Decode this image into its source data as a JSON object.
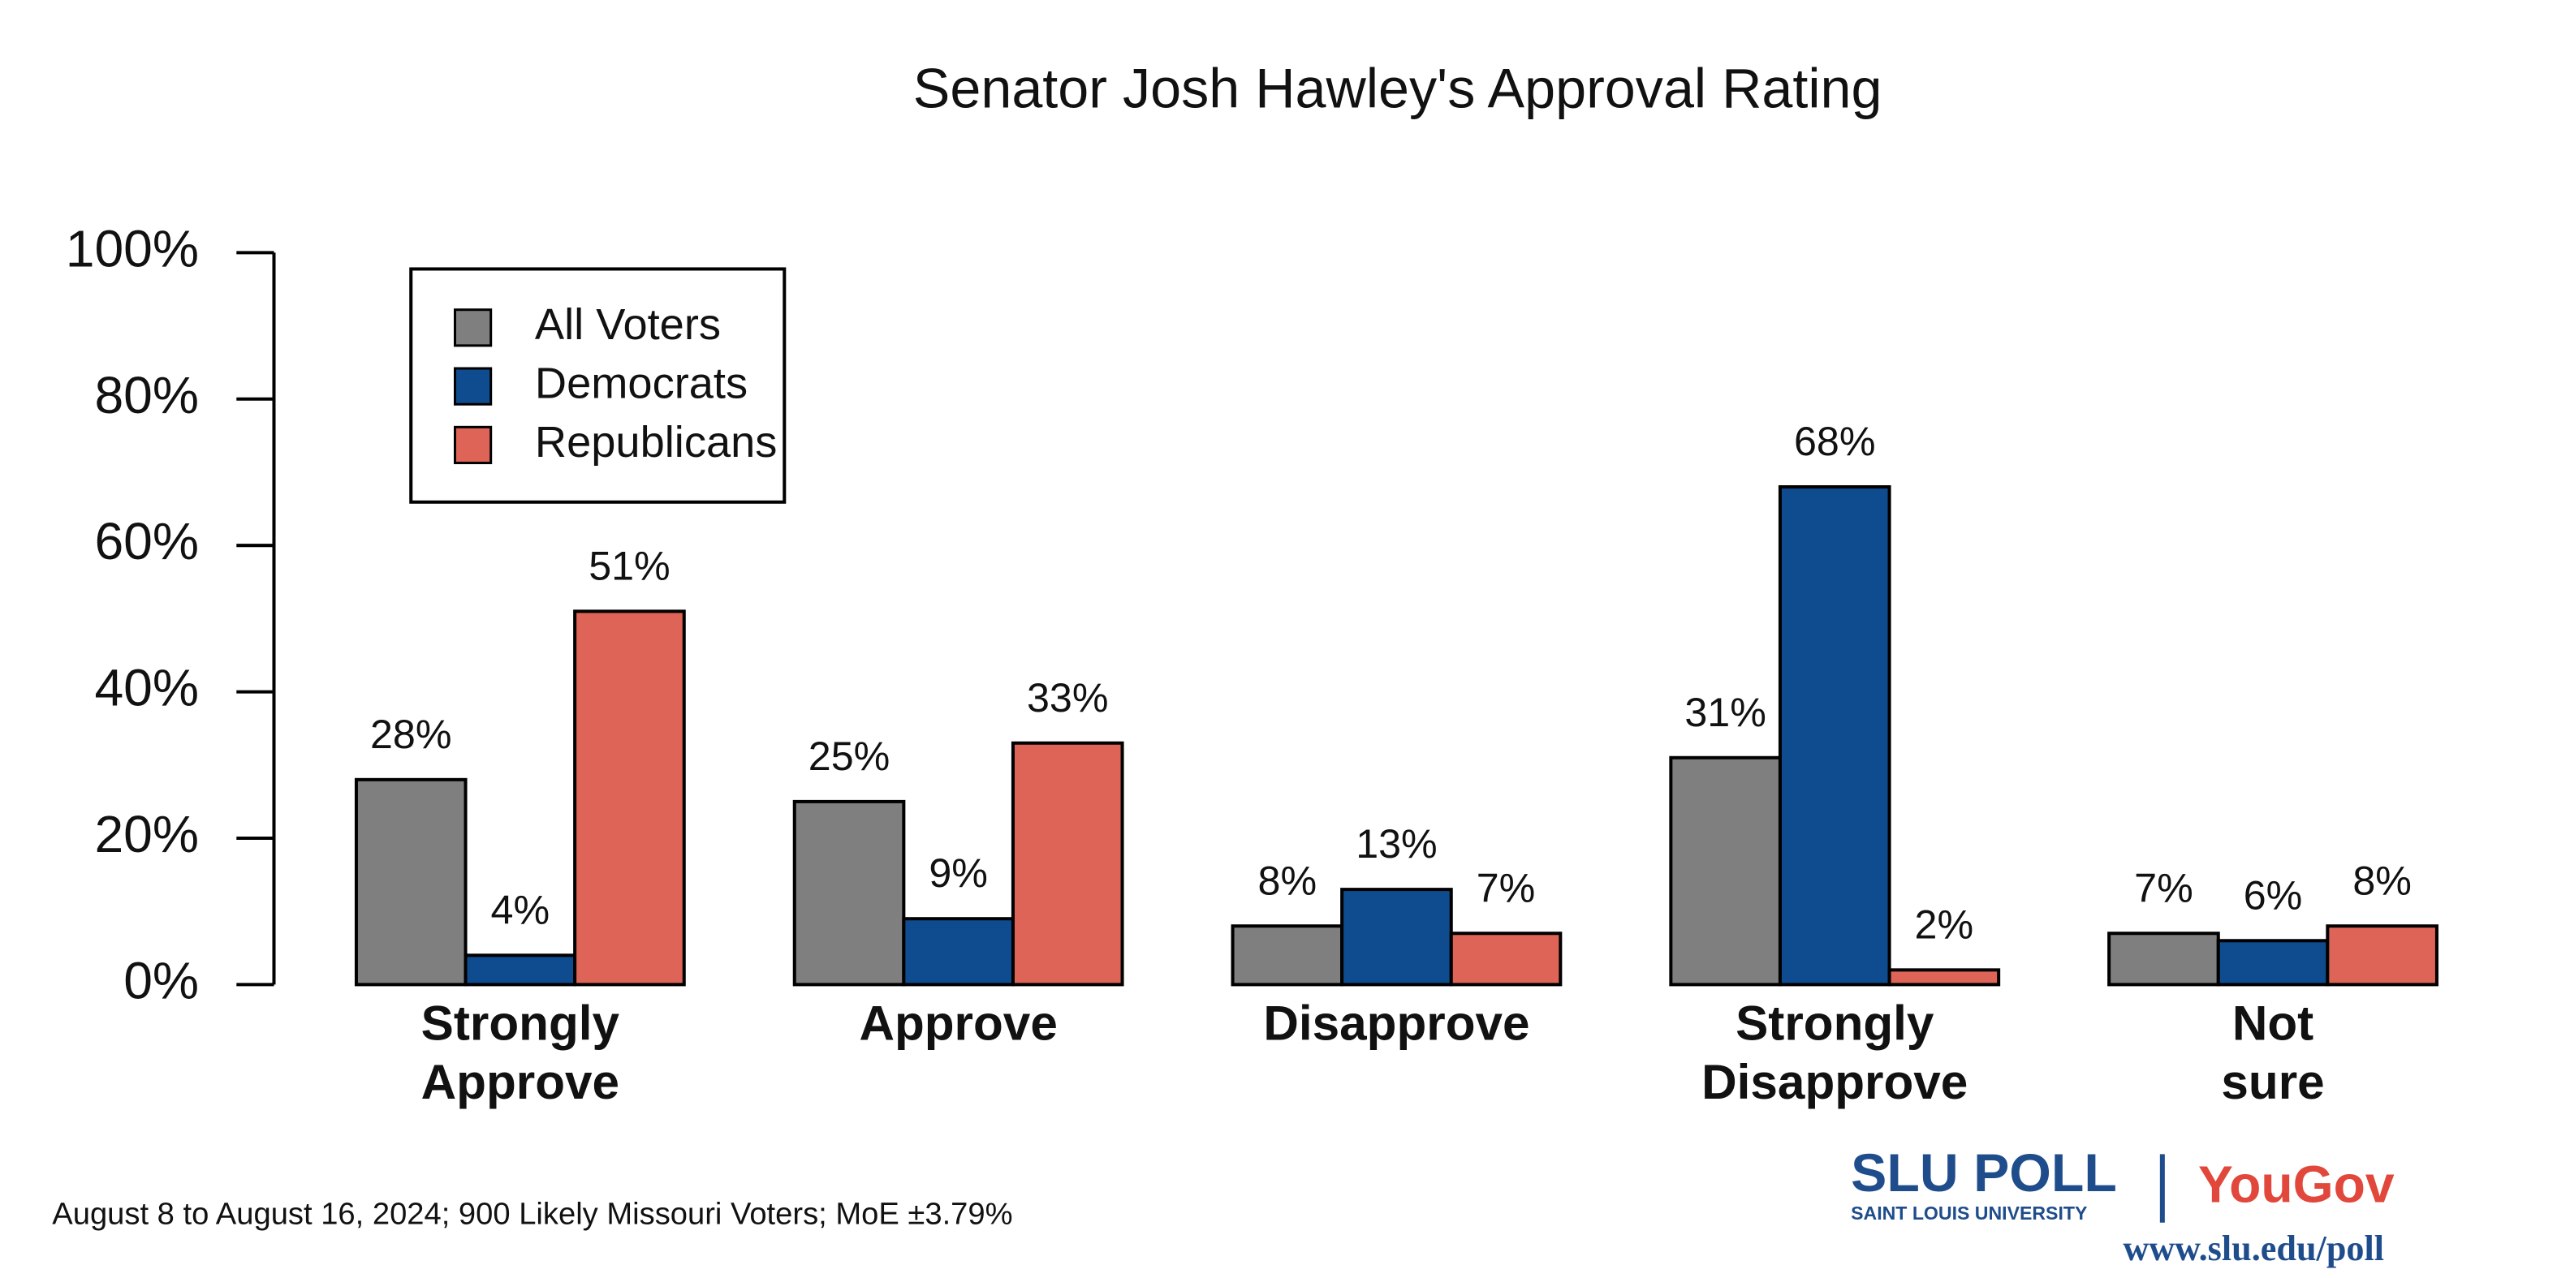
{
  "chart_data": {
    "type": "bar",
    "title": "Senator Josh Hawley's Approval Rating",
    "categories": [
      "Strongly Approve",
      "Approve",
      "Disapprove",
      "Strongly Disapprove",
      "Not sure"
    ],
    "series": [
      {
        "name": "All Voters",
        "color": "#7f7f7f",
        "values": [
          28,
          25,
          8,
          31,
          7
        ],
        "value_labels": [
          "28%",
          "25%",
          "8%",
          "31%",
          "7%"
        ]
      },
      {
        "name": "Democrats",
        "color": "#0f4c8f",
        "values": [
          4,
          9,
          13,
          68,
          6
        ],
        "value_labels": [
          "4%",
          "9%",
          "13%",
          "68%",
          "6%"
        ]
      },
      {
        "name": "Republicans",
        "color": "#de6457",
        "values": [
          51,
          33,
          7,
          2,
          8
        ],
        "value_labels": [
          "51%",
          "33%",
          "7%",
          "2%",
          "8%"
        ]
      }
    ],
    "ylim": [
      0,
      100
    ],
    "yticks": [
      {
        "value": 0,
        "label": "0%"
      },
      {
        "value": 20,
        "label": "20%"
      },
      {
        "value": 40,
        "label": "40%"
      },
      {
        "value": 60,
        "label": "60%"
      },
      {
        "value": 80,
        "label": "80%"
      },
      {
        "value": 100,
        "label": "100%"
      }
    ],
    "grid": false,
    "legend": "upper-left",
    "source_note": "August 8 to August 16, 2024; 900 Likely Missouri Voters; MoE ±3.79%",
    "logos": {
      "slu_poll": "SLU POLL",
      "slu_name": "SAINT LOUIS UNIVERSITY",
      "yougov": "YouGov",
      "url": "www.slu.edu/poll"
    }
  }
}
